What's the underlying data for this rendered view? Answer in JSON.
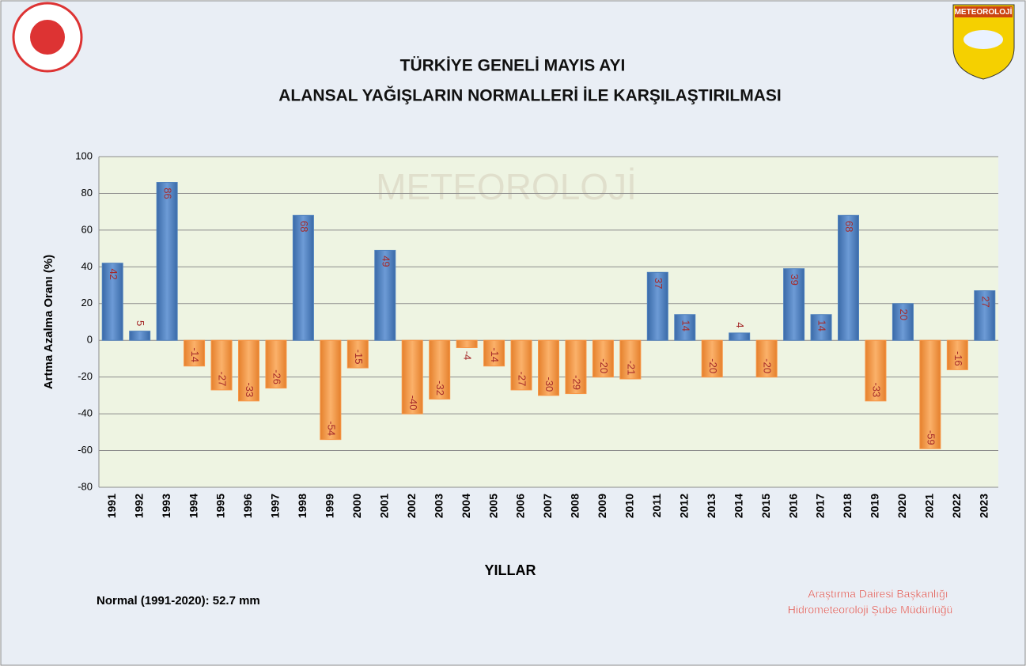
{
  "chart_data": {
    "type": "bar",
    "title": "TÜRKİYE GENELİ  MAYIS AYI",
    "subtitle": "ALANSAL YAĞIŞLARIN NORMALLERİ İLE KARŞILAŞTIRILMASI",
    "y_label": "Artma Azalma Oranı (%)",
    "x_label": "YILLAR",
    "note": "Normal (1991-2020):  52.7 mm",
    "credits": [
      "Araştırma Dairesi Başkanlığı",
      "Hidrometeoroloji Şube Müdürlüğü"
    ],
    "logo_text": "METEOROLOJİ",
    "categories": [
      "1991",
      "1992",
      "1993",
      "1994",
      "1995",
      "1996",
      "1997",
      "1998",
      "1999",
      "2000",
      "2001",
      "2002",
      "2003",
      "2004",
      "2005",
      "2006",
      "2007",
      "2008",
      "2009",
      "2010",
      "2011",
      "2012",
      "2013",
      "2014",
      "2015",
      "2016",
      "2017",
      "2018",
      "2019",
      "2020",
      "2021",
      "2022",
      "2023"
    ],
    "values": [
      42,
      5,
      86,
      -14,
      -27,
      -33,
      -26,
      68,
      -54,
      -15,
      49,
      -40,
      -32,
      -4,
      -14,
      -27,
      -30,
      -29,
      -20,
      -21,
      37,
      14,
      -20,
      4,
      -20,
      39,
      14,
      68,
      -33,
      20,
      -59,
      -16,
      27
    ],
    "positive_color": "#4f81bd",
    "negative_color": "#f79646",
    "ylim": [
      -80,
      100
    ],
    "yticks": [
      -80,
      -60,
      -40,
      -20,
      0,
      20,
      40,
      60,
      80,
      100
    ],
    "grid": true
  }
}
